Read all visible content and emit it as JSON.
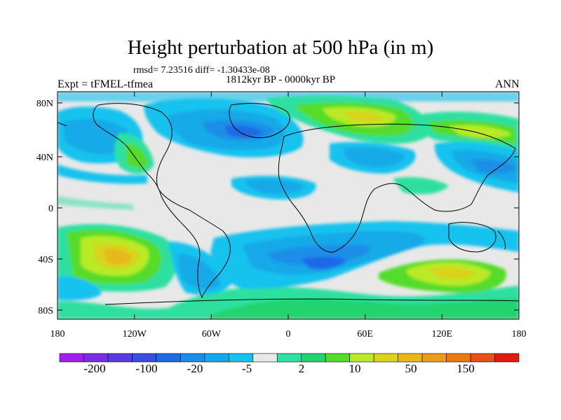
{
  "title": "Height perturbation at 500 hPa (in m)",
  "stats_line": "rmsd= 7.23516 diff= -1.30433e-08",
  "period": "1812kyr BP - 0000kyr BP",
  "experiment": "Expt = tFMEL-tfmea",
  "season": "ANN",
  "axes": {
    "longitude_ticks": [
      "180",
      "120W",
      "60W",
      "0",
      "60E",
      "120E",
      "180"
    ],
    "latitude_ticks": [
      "80N",
      "40N",
      "0",
      "40S",
      "80S"
    ]
  },
  "colorbar": {
    "colors": [
      "#a020f0",
      "#7a2ee6",
      "#5a3be0",
      "#3a4ee0",
      "#1f6be6",
      "#1c8ee8",
      "#12a9e8",
      "#18c2ee",
      "#e8e8e8",
      "#2fe0a0",
      "#22d470",
      "#55dc2a",
      "#b8ea28",
      "#d8d41a",
      "#e6b81a",
      "#e89e18",
      "#e87a10",
      "#e8501a",
      "#e01c10"
    ],
    "labels": [
      "-200",
      "-100",
      "-20",
      "-5",
      "2",
      "10",
      "50",
      "150"
    ]
  }
}
